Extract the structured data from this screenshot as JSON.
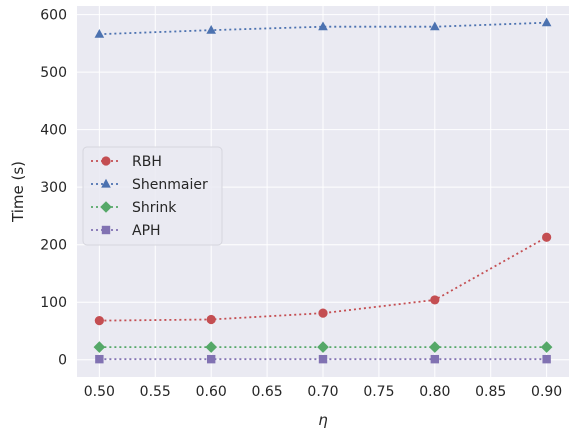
{
  "chart_data": {
    "type": "line",
    "title": "",
    "xlabel": "η",
    "ylabel": "Time (s)",
    "x": [
      0.5,
      0.6,
      0.7,
      0.8,
      0.9
    ],
    "xlim": [
      0.48,
      0.92
    ],
    "ylim": [
      -30,
      615
    ],
    "xticks": [
      0.5,
      0.55,
      0.6,
      0.65,
      0.7,
      0.75,
      0.8,
      0.85,
      0.9
    ],
    "xtick_labels": [
      "0.50",
      "0.55",
      "0.60",
      "0.65",
      "0.70",
      "0.75",
      "0.80",
      "0.85",
      "0.90"
    ],
    "yticks": [
      0,
      100,
      200,
      300,
      400,
      500,
      600
    ],
    "ytick_labels": [
      "0",
      "100",
      "200",
      "300",
      "400",
      "500",
      "600"
    ],
    "grid": true,
    "legend_position": "center-left",
    "background": "#eaeaf2",
    "series": [
      {
        "name": "RBH",
        "color": "#c44e52",
        "marker": "circle",
        "values": [
          68,
          70,
          81,
          104,
          213
        ]
      },
      {
        "name": "Shenmaier",
        "color": "#4c72b0",
        "marker": "triangle",
        "values": [
          566,
          573,
          579,
          579,
          586
        ]
      },
      {
        "name": "Shrink",
        "color": "#55a868",
        "marker": "diamond",
        "values": [
          22,
          22,
          22,
          22,
          22
        ]
      },
      {
        "name": "APH",
        "color": "#8172b2",
        "marker": "square",
        "values": [
          1,
          1,
          1,
          1,
          1
        ]
      }
    ]
  }
}
